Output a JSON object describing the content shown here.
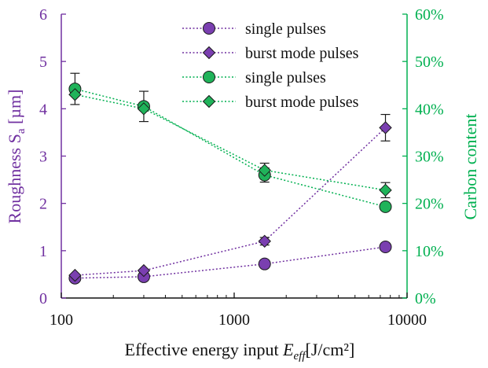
{
  "colors": {
    "purple": "#7030A0",
    "purple_fill": "#7a3fb0",
    "green": "#00B050",
    "green_fill": "#20b35a",
    "axis_left": "#7030A0",
    "axis_right": "#00B050",
    "axis_bottom": "#111111"
  },
  "chart_data": {
    "type": "scatter",
    "x_scale": "log",
    "xlabel": {
      "prefix": "Effective energy input ",
      "symbol": "E",
      "subscript": "eff",
      "unit": "[J/cm²]"
    },
    "ylabel_left": {
      "text": "Roughness S",
      "subscript": "a",
      "unit": " [µm]"
    },
    "ylabel_right": "Carbon content",
    "xlim": [
      100,
      10000
    ],
    "ylim_left": [
      0,
      6
    ],
    "ylim_right": [
      0,
      60
    ],
    "x_ticks": [
      {
        "value": 100,
        "label": "100"
      },
      {
        "value": 1000,
        "label": "1000"
      },
      {
        "value": 10000,
        "label": "10000"
      }
    ],
    "y_ticks_left": [
      {
        "value": 0,
        "label": "0"
      },
      {
        "value": 1,
        "label": "1"
      },
      {
        "value": 2,
        "label": "2"
      },
      {
        "value": 3,
        "label": "3"
      },
      {
        "value": 4,
        "label": "4"
      },
      {
        "value": 5,
        "label": "5"
      },
      {
        "value": 6,
        "label": "6"
      }
    ],
    "y_ticks_right": [
      {
        "value": 0,
        "label": "0%"
      },
      {
        "value": 10,
        "label": "10%"
      },
      {
        "value": 20,
        "label": "20%"
      },
      {
        "value": 30,
        "label": "30%"
      },
      {
        "value": 40,
        "label": "40%"
      },
      {
        "value": 50,
        "label": "50%"
      },
      {
        "value": 60,
        "label": "60%"
      }
    ],
    "legend_position": "top-right",
    "series": [
      {
        "name": "single pulses",
        "axis": "left",
        "marker": "circle",
        "color": "#7030A0",
        "points": [
          {
            "x": 120,
            "y": 0.42,
            "err": null
          },
          {
            "x": 300,
            "y": 0.45,
            "err": null
          },
          {
            "x": 1500,
            "y": 0.72,
            "err": null
          },
          {
            "x": 7500,
            "y": 1.08,
            "err": null
          }
        ]
      },
      {
        "name": "burst mode pulses",
        "axis": "left",
        "marker": "diamond",
        "color": "#7030A0",
        "points": [
          {
            "x": 120,
            "y": 0.48,
            "err": null
          },
          {
            "x": 300,
            "y": 0.58,
            "err": null
          },
          {
            "x": 1500,
            "y": 1.2,
            "err": 0.08
          },
          {
            "x": 7500,
            "y": 3.6,
            "err": 0.28
          }
        ]
      },
      {
        "name": "single pulses",
        "axis": "right",
        "marker": "circle",
        "color": "#00B050",
        "points": [
          {
            "x": 120,
            "y": 44.2,
            "err": 3.3
          },
          {
            "x": 300,
            "y": 40.5,
            "err": 3.2
          },
          {
            "x": 1500,
            "y": 26,
            "err": 1.5
          },
          {
            "x": 7500,
            "y": 19.3,
            "err": 0.8
          }
        ]
      },
      {
        "name": "burst mode pulses",
        "axis": "right",
        "marker": "diamond",
        "color": "#00B050",
        "points": [
          {
            "x": 120,
            "y": 43,
            "err": null
          },
          {
            "x": 300,
            "y": 40,
            "err": null
          },
          {
            "x": 1500,
            "y": 27,
            "err": 1.5
          },
          {
            "x": 7500,
            "y": 22.8,
            "err": 1.6
          }
        ]
      }
    ]
  }
}
